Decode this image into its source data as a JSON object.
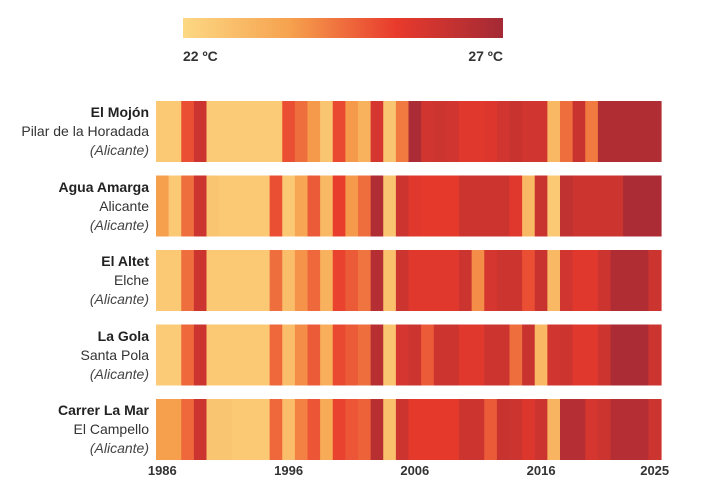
{
  "legend": {
    "min_label": "22 ºC",
    "max_label": "27 ºC",
    "min_value": 22,
    "max_value": 27,
    "colors": [
      "#fdd884",
      "#f6a24e",
      "#e83a2c",
      "#a32a35"
    ]
  },
  "chart_data": {
    "type": "heatmap",
    "title": "",
    "xlabel": "",
    "ylabel": "",
    "x": [
      1986,
      1987,
      1988,
      1989,
      1990,
      1991,
      1992,
      1993,
      1994,
      1995,
      1996,
      1997,
      1998,
      1999,
      2000,
      2001,
      2002,
      2003,
      2004,
      2005,
      2006,
      2007,
      2008,
      2009,
      2010,
      2011,
      2012,
      2013,
      2014,
      2015,
      2016,
      2017,
      2018,
      2019,
      2020,
      2021,
      2022,
      2023,
      2024,
      2025
    ],
    "x_ticks": [
      "1986",
      "1996",
      "2006",
      "2016",
      "2025"
    ],
    "value_range": [
      22,
      27
    ],
    "value_unit": "ºC",
    "stations": [
      {
        "name": "El Mojón",
        "place": "Pilar de la Horadada",
        "province": "(Alicante)",
        "values": [
          22.5,
          22.5,
          25.0,
          26.0,
          22.4,
          22.4,
          22.4,
          22.4,
          22.4,
          22.4,
          25.0,
          24.5,
          23.8,
          22.6,
          25.1,
          23.8,
          23.2,
          25.8,
          22.6,
          24.3,
          26.8,
          25.9,
          26.0,
          25.9,
          25.5,
          25.5,
          25.6,
          25.9,
          26.1,
          25.9,
          25.9,
          23.0,
          24.5,
          26.1,
          24.3,
          26.7,
          26.7,
          26.7,
          26.7,
          26.7
        ]
      },
      {
        "name": "Agua Amarga",
        "place": "Alicante",
        "province": "(Alicante)",
        "values": [
          23.7,
          22.5,
          24.5,
          26.0,
          22.6,
          22.5,
          22.5,
          22.5,
          22.5,
          25.0,
          22.5,
          23.5,
          24.8,
          23.0,
          25.3,
          23.8,
          24.5,
          26.7,
          22.6,
          26.0,
          25.5,
          25.4,
          25.4,
          25.4,
          26.0,
          26.0,
          26.0,
          26.0,
          25.5,
          23.0,
          26.1,
          22.5,
          26.3,
          26.0,
          26.0,
          26.0,
          26.0,
          26.8,
          26.8,
          26.8
        ]
      },
      {
        "name": "El Altet",
        "place": "Elche",
        "province": "(Alicante)",
        "values": [
          22.5,
          22.5,
          24.5,
          26.0,
          22.5,
          22.5,
          22.5,
          22.5,
          22.5,
          24.5,
          22.8,
          23.9,
          24.6,
          23.2,
          25.2,
          24.8,
          24.4,
          26.6,
          22.7,
          26.0,
          25.5,
          25.5,
          25.5,
          25.5,
          26.0,
          24.0,
          25.8,
          26.0,
          26.0,
          25.0,
          26.1,
          23.0,
          25.9,
          25.5,
          25.5,
          26.0,
          26.7,
          26.7,
          26.7,
          26.0
        ]
      },
      {
        "name": "La Gola",
        "place": "Santa Pola",
        "province": "(Alicante)",
        "values": [
          22.4,
          22.4,
          24.6,
          26.0,
          22.5,
          22.5,
          22.5,
          22.5,
          22.5,
          24.6,
          22.8,
          24.0,
          24.8,
          23.3,
          25.1,
          24.8,
          24.5,
          26.5,
          22.6,
          25.8,
          26.0,
          24.8,
          26.0,
          26.0,
          25.5,
          25.5,
          26.0,
          26.0,
          24.5,
          26.1,
          23.0,
          25.9,
          26.0,
          25.5,
          25.5,
          26.0,
          26.8,
          26.8,
          26.8,
          26.0
        ]
      },
      {
        "name": "Carrer La Mar",
        "place": "El Campello",
        "province": "(Alicante)",
        "values": [
          23.7,
          23.7,
          24.6,
          26.0,
          22.6,
          22.6,
          22.5,
          22.5,
          22.5,
          24.6,
          22.8,
          24.2,
          24.9,
          23.4,
          25.2,
          24.9,
          24.7,
          26.5,
          22.7,
          26.0,
          25.4,
          25.4,
          25.4,
          25.4,
          26.0,
          26.0,
          24.8,
          26.1,
          26.0,
          25.6,
          26.0,
          23.1,
          26.6,
          26.6,
          25.8,
          26.0,
          26.6,
          26.6,
          26.6,
          26.0
        ]
      }
    ]
  }
}
